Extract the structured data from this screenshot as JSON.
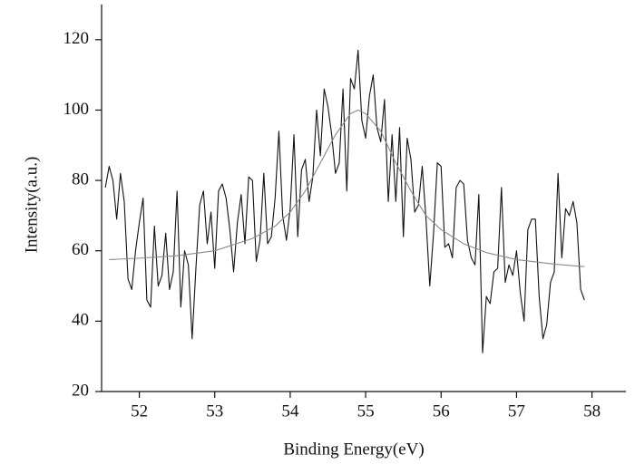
{
  "chart_data": {
    "type": "line",
    "xlabel": "Binding Energy(eV)",
    "ylabel": "Intensity(a.u.)",
    "xlim": [
      51.5,
      58.45
    ],
    "ylim": [
      20,
      130
    ],
    "xticks": [
      52,
      53,
      54,
      55,
      56,
      57,
      58
    ],
    "yticks": [
      20,
      40,
      60,
      80,
      100,
      120
    ],
    "grid": false,
    "series": [
      {
        "color": "#111111",
        "x": [
          51.55,
          51.6,
          51.65,
          51.7,
          51.75,
          51.8,
          51.85,
          51.9,
          51.95,
          52,
          52.05,
          52.1,
          52.15,
          52.2,
          52.25,
          52.3,
          52.35,
          52.4,
          52.45,
          52.5,
          52.55,
          52.6,
          52.65,
          52.7,
          52.75,
          52.8,
          52.85,
          52.9,
          52.95,
          53,
          53.05,
          53.1,
          53.15,
          53.2,
          53.25,
          53.3,
          53.35,
          53.4,
          53.45,
          53.5,
          53.55,
          53.6,
          53.65,
          53.7,
          53.75,
          53.8,
          53.85,
          53.9,
          53.95,
          54,
          54.05,
          54.1,
          54.15,
          54.2,
          54.25,
          54.3,
          54.35,
          54.4,
          54.45,
          54.5,
          54.55,
          54.6,
          54.65,
          54.7,
          54.75,
          54.8,
          54.85,
          54.9,
          54.95,
          55,
          55.05,
          55.1,
          55.15,
          55.2,
          55.25,
          55.3,
          55.35,
          55.4,
          55.45,
          55.5,
          55.55,
          55.6,
          55.65,
          55.7,
          55.75,
          55.8,
          55.85,
          55.9,
          55.95,
          56,
          56.05,
          56.1,
          56.15,
          56.2,
          56.25,
          56.3,
          56.35,
          56.4,
          56.45,
          56.5,
          56.55,
          56.6,
          56.65,
          56.7,
          56.75,
          56.8,
          56.85,
          56.9,
          56.95,
          57,
          57.05,
          57.1,
          57.15,
          57.2,
          57.25,
          57.3,
          57.35,
          57.4,
          57.45,
          57.5,
          57.55,
          57.6,
          57.65,
          57.7,
          57.75,
          57.8,
          57.85,
          57.9
        ],
        "values": [
          78,
          84,
          80,
          69,
          82,
          74,
          52,
          49,
          60,
          68,
          75,
          46,
          44,
          67,
          50,
          53,
          65,
          49,
          54,
          77,
          44,
          60,
          56,
          35,
          55,
          73,
          77,
          62,
          71,
          55,
          77,
          79,
          75,
          66,
          54,
          68,
          76,
          62,
          81,
          80,
          57,
          63,
          82,
          62,
          64,
          75,
          94,
          70,
          63,
          72,
          93,
          64,
          83,
          86,
          74,
          81,
          100,
          87,
          106,
          101,
          93,
          82,
          85,
          106,
          77,
          109,
          106,
          117,
          97,
          92,
          104,
          110,
          95,
          91,
          103,
          74,
          93,
          74,
          95,
          64,
          92,
          86,
          71,
          73,
          84,
          69,
          50,
          65,
          85,
          84,
          61,
          62,
          58,
          78,
          80,
          79,
          63,
          58,
          56,
          76,
          31,
          47,
          45,
          54,
          55,
          78,
          51,
          56,
          53,
          60,
          48,
          40,
          66,
          69,
          69,
          47,
          35,
          39,
          51,
          54,
          82,
          58,
          72,
          70,
          74,
          68,
          49,
          46
        ]
      },
      {
        "color": "#8a8a8a",
        "x": [
          51.6,
          52,
          52.5,
          53,
          53.5,
          53.8,
          54,
          54.2,
          54.4,
          54.6,
          54.8,
          54.9,
          55,
          55.2,
          55.4,
          55.6,
          55.8,
          56,
          56.3,
          56.6,
          57,
          57.5,
          57.9
        ],
        "values": [
          57.5,
          57.9,
          58.6,
          60,
          63.5,
          67,
          71,
          77,
          85,
          93,
          99,
          100,
          99,
          94,
          85,
          77,
          70,
          66,
          62,
          59.5,
          57.5,
          56.2,
          55.5
        ]
      }
    ]
  }
}
